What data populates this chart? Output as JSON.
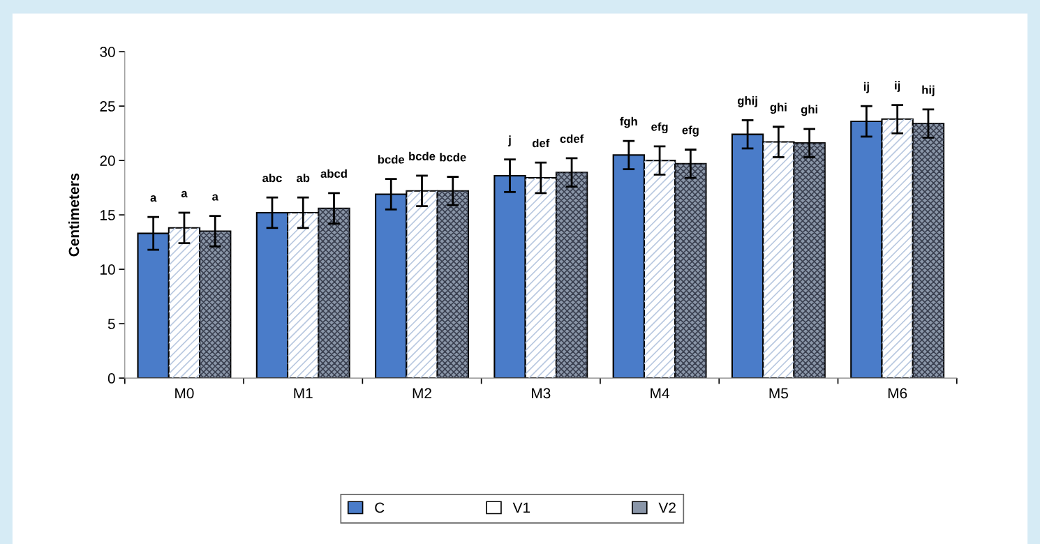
{
  "chart_data": {
    "type": "bar",
    "ylabel": "Centimeters",
    "categories": [
      "M0",
      "M1",
      "M2",
      "M3",
      "M4",
      "M5",
      "M6"
    ],
    "series": [
      {
        "name": "C",
        "color": "#4a7cc9",
        "values": [
          13.3,
          15.2,
          16.9,
          18.6,
          20.5,
          22.4,
          23.6
        ],
        "errors": [
          1.5,
          1.4,
          1.4,
          1.5,
          1.3,
          1.3,
          1.4
        ],
        "value_labels": [
          "a",
          "abc",
          "bcde",
          "j",
          "fgh",
          "ghij",
          "ij"
        ]
      },
      {
        "name": "V1",
        "color": "#ffffff",
        "values": [
          13.8,
          15.2,
          17.2,
          18.4,
          20.0,
          21.7,
          23.8
        ],
        "errors": [
          1.4,
          1.4,
          1.4,
          1.4,
          1.3,
          1.4,
          1.3
        ],
        "value_labels": [
          "a",
          "ab",
          "bcde",
          "def",
          "efg",
          "ghi",
          "ij"
        ]
      },
      {
        "name": "V2",
        "color": "#8a96a8",
        "values": [
          13.5,
          15.6,
          17.2,
          18.9,
          19.7,
          21.6,
          23.4
        ],
        "errors": [
          1.4,
          1.4,
          1.3,
          1.3,
          1.3,
          1.3,
          1.3
        ],
        "value_labels": [
          "a",
          "abcd",
          "bcde",
          "cdef",
          "efg",
          "ghi",
          "hij"
        ]
      }
    ],
    "ylim": [
      0,
      30
    ],
    "yticks": [
      0,
      5,
      10,
      15,
      20,
      25,
      30
    ],
    "grid": false,
    "legend": "bottom"
  }
}
